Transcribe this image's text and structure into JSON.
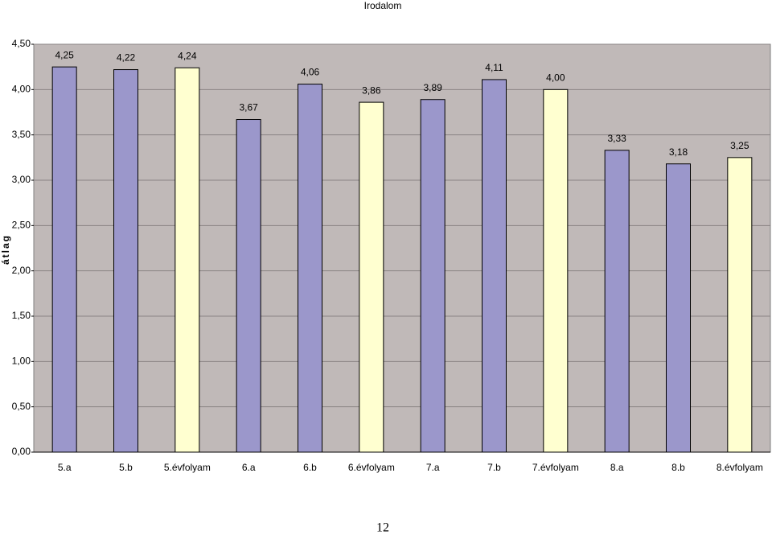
{
  "chart_data": {
    "type": "bar",
    "title": "Irodalom",
    "y_label": "átlag",
    "categories": [
      "5.a",
      "5.b",
      "5.évfolyam",
      "6.a",
      "6.b",
      "6.évfolyam",
      "7.a",
      "7.b",
      "7.évfolyam",
      "8.a",
      "8.b",
      "8.évfolyam"
    ],
    "values": [
      4.25,
      4.22,
      4.24,
      3.67,
      4.06,
      3.86,
      3.89,
      4.11,
      4.0,
      3.33,
      3.18,
      3.25
    ],
    "value_labels": [
      "4,25",
      "4,22",
      "4,24",
      "3,67",
      "4,06",
      "3,86",
      "3,89",
      "4,11",
      "4,00",
      "3,33",
      "3,18",
      "3,25"
    ],
    "colors": [
      "#9b97cb",
      "#9b97cb",
      "#ffffd0",
      "#9b97cb",
      "#9b97cb",
      "#ffffd0",
      "#9b97cb",
      "#9b97cb",
      "#ffffd0",
      "#9b97cb",
      "#9b97cb",
      "#ffffd0"
    ],
    "ylim": [
      0,
      4.5
    ],
    "yticks": [
      {
        "value": 0,
        "label": "0,00"
      },
      {
        "value": 0.5,
        "label": "0,50"
      },
      {
        "value": 1,
        "label": "1,00"
      },
      {
        "value": 1.5,
        "label": "1,50"
      },
      {
        "value": 2,
        "label": "2,00"
      },
      {
        "value": 2.5,
        "label": "2,50"
      },
      {
        "value": 3,
        "label": "3,00"
      },
      {
        "value": 3.5,
        "label": "3,50"
      },
      {
        "value": 4,
        "label": "4,00"
      },
      {
        "value": 4.5,
        "label": "4,50"
      }
    ],
    "grid": true,
    "plot_background": "#c0b9b8"
  },
  "page_number": "12"
}
